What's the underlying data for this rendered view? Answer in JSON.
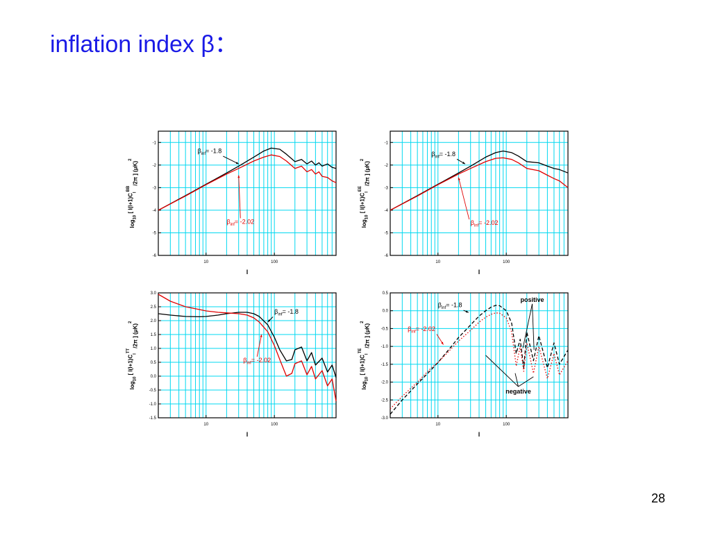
{
  "slide": {
    "title": "inflation index β：",
    "page_number": "28"
  },
  "colors": {
    "title": "#1a1ae6",
    "grid": "#00d8f0",
    "series_a": "#000000",
    "series_b": "#e00000"
  },
  "chart_data": [
    {
      "type": "line",
      "xscale": "log",
      "xlim": [
        2,
        800
      ],
      "ylim": [
        -6,
        -0.5
      ],
      "yticks": [
        "-1",
        "-2",
        "-3",
        "-4",
        "-5",
        "-6"
      ],
      "ytick_values": [
        -1,
        -2,
        -3,
        -4,
        -5,
        -6
      ],
      "xticks": [
        "10",
        "100"
      ],
      "xtick_values": [
        10,
        100
      ],
      "xlabel": "l",
      "ylabel_parts": [
        "log",
        "10",
        " [ l(l+1)C",
        "l",
        "BB",
        "/2π ] (μK)",
        "2"
      ],
      "series": [
        {
          "label": "β",
          "label_sub": "inf",
          "label_value": "= -1.8",
          "style": "solid",
          "x": [
            2,
            5,
            10,
            20,
            30,
            50,
            70,
            90,
            120,
            150,
            200,
            250,
            300,
            350,
            400,
            450,
            500,
            600,
            700,
            800
          ],
          "y": [
            -4.0,
            -3.35,
            -2.85,
            -2.35,
            -2.05,
            -1.65,
            -1.38,
            -1.25,
            -1.3,
            -1.52,
            -1.85,
            -1.75,
            -1.95,
            -1.82,
            -2.0,
            -1.9,
            -2.05,
            -1.95,
            -2.1,
            -2.15
          ]
        },
        {
          "label": "β",
          "label_sub": "inf",
          "label_value": "= -2.02",
          "style": "solid",
          "x": [
            2,
            5,
            10,
            20,
            30,
            50,
            70,
            90,
            120,
            150,
            200,
            250,
            300,
            350,
            400,
            450,
            500,
            600,
            700,
            800
          ],
          "y": [
            -4.0,
            -3.37,
            -2.87,
            -2.4,
            -2.15,
            -1.82,
            -1.65,
            -1.55,
            -1.62,
            -1.82,
            -2.15,
            -2.05,
            -2.3,
            -2.2,
            -2.4,
            -2.3,
            -2.5,
            -2.55,
            -2.7,
            -2.78
          ]
        }
      ],
      "annotations": [
        {
          "series": 0,
          "text_x": 7.5,
          "text_y": -1.47,
          "point_x": 30,
          "point_y": -1.95
        },
        {
          "series": 1,
          "text_x": 20,
          "text_y": -4.6,
          "point_x": 30,
          "point_y": -2.45
        }
      ]
    },
    {
      "type": "line",
      "xscale": "log",
      "xlim": [
        2,
        800
      ],
      "ylim": [
        -6,
        -0.5
      ],
      "yticks": [
        "-1",
        "-2",
        "-3",
        "-4",
        "-5",
        "-6"
      ],
      "ytick_values": [
        -1,
        -2,
        -3,
        -4,
        -5,
        -6
      ],
      "xticks": [
        "10",
        "100"
      ],
      "xtick_values": [
        10,
        100
      ],
      "xlabel": "l",
      "ylabel_parts": [
        "log",
        "10",
        " [ l(l+1)C",
        "l",
        "EE",
        "/2π ] (μK)",
        "2"
      ],
      "series": [
        {
          "label": "β",
          "label_sub": "inf",
          "label_value": "= -1.8",
          "style": "solid",
          "x": [
            2,
            5,
            10,
            20,
            30,
            50,
            70,
            90,
            120,
            150,
            200,
            300,
            400,
            500,
            600,
            800
          ],
          "y": [
            -4.0,
            -3.35,
            -2.85,
            -2.35,
            -2.05,
            -1.65,
            -1.45,
            -1.38,
            -1.45,
            -1.6,
            -1.85,
            -1.9,
            -2.05,
            -2.15,
            -2.2,
            -2.35
          ]
        },
        {
          "label": "β",
          "label_sub": "inf",
          "label_value": "= -2.02",
          "style": "solid",
          "x": [
            2,
            5,
            10,
            20,
            30,
            50,
            70,
            90,
            120,
            150,
            200,
            300,
            400,
            500,
            600,
            800
          ],
          "y": [
            -4.0,
            -3.37,
            -2.87,
            -2.4,
            -2.15,
            -1.85,
            -1.7,
            -1.68,
            -1.75,
            -1.9,
            -2.15,
            -2.25,
            -2.45,
            -2.6,
            -2.7,
            -3.0
          ]
        }
      ],
      "annotations": [
        {
          "series": 0,
          "text_x": 8,
          "text_y": -1.6,
          "point_x": 25,
          "point_y": -1.95
        },
        {
          "series": 1,
          "text_x": 30,
          "text_y": -4.65,
          "point_x": 20,
          "point_y": -2.55
        }
      ]
    },
    {
      "type": "line",
      "xscale": "log",
      "xlim": [
        2,
        800
      ],
      "ylim": [
        -1.5,
        3.0
      ],
      "yticks": [
        "3.0",
        "2.5",
        "2.0",
        "1.5",
        "1.0",
        "0.5",
        "0.0",
        "-0.5",
        "-1.0",
        "-1.5"
      ],
      "ytick_values": [
        3.0,
        2.5,
        2.0,
        1.5,
        1.0,
        0.5,
        0.0,
        -0.5,
        -1.0,
        -1.5
      ],
      "xticks": [
        "10",
        "100"
      ],
      "xtick_values": [
        10,
        100
      ],
      "xlabel": "l",
      "ylabel_parts": [
        "log",
        "10",
        " [ l(l+1)C",
        "l",
        "TT",
        "/2π ] (μK)",
        "2"
      ],
      "series": [
        {
          "label": "β",
          "label_sub": "inf",
          "label_value": "= -1.8",
          "style": "solid",
          "x": [
            2,
            3,
            5,
            8,
            10,
            15,
            20,
            30,
            40,
            50,
            60,
            80,
            100,
            120,
            150,
            180,
            200,
            250,
            300,
            350,
            400,
            500,
            600,
            700,
            800
          ],
          "y": [
            2.25,
            2.2,
            2.15,
            2.14,
            2.15,
            2.2,
            2.25,
            2.3,
            2.3,
            2.25,
            2.15,
            1.85,
            1.4,
            0.95,
            0.55,
            0.6,
            0.95,
            1.05,
            0.55,
            0.85,
            0.4,
            0.65,
            0.15,
            0.4,
            -0.05
          ]
        },
        {
          "label": "β",
          "label_sub": "inf",
          "label_value": "= -2.02",
          "style": "solid",
          "x": [
            2,
            3,
            5,
            8,
            10,
            15,
            20,
            30,
            40,
            50,
            60,
            80,
            100,
            120,
            150,
            180,
            200,
            250,
            300,
            350,
            400,
            500,
            600,
            700,
            800
          ],
          "y": [
            2.95,
            2.7,
            2.5,
            2.4,
            2.35,
            2.3,
            2.28,
            2.25,
            2.2,
            2.1,
            1.95,
            1.6,
            1.1,
            0.6,
            0.0,
            0.1,
            0.45,
            0.55,
            0.05,
            0.35,
            -0.1,
            0.2,
            -0.35,
            -0.1,
            -0.9
          ]
        }
      ],
      "annotations": [
        {
          "series": 0,
          "text_x": 100,
          "text_y": 2.25,
          "point_x": 80,
          "point_y": 1.95
        },
        {
          "series": 1,
          "text_x": 35,
          "text_y": 0.5,
          "point_x": 65,
          "point_y": 1.5
        }
      ]
    },
    {
      "type": "line",
      "xscale": "log",
      "xlim": [
        2,
        800
      ],
      "ylim": [
        -3.0,
        0.5
      ],
      "yticks": [
        "0.5",
        "0.0",
        "-0.5",
        "-1.0",
        "-1.5",
        "-2.0",
        "-2.5",
        "-3.0"
      ],
      "ytick_values": [
        0.5,
        0.0,
        -0.5,
        -1.0,
        -1.5,
        -2.0,
        -2.5,
        -3.0
      ],
      "xticks": [
        "10",
        "100"
      ],
      "xtick_values": [
        10,
        100
      ],
      "xlabel": "l",
      "ylabel_parts": [
        "log",
        "10",
        " [ l(l+1)C",
        "l",
        "TE",
        "/2π ] (μK)",
        "2"
      ],
      "series": [
        {
          "label": "β",
          "label_sub": "inf",
          "label_value": "= -1.8",
          "style": "dashed",
          "x": [
            2,
            3,
            5,
            8,
            10,
            15,
            20,
            30,
            40,
            50,
            60,
            70,
            80,
            100,
            120,
            140,
            160,
            180,
            200,
            250,
            300,
            400,
            500,
            600,
            800
          ],
          "y": [
            -2.9,
            -2.5,
            -2.05,
            -1.65,
            -1.45,
            -1.05,
            -0.75,
            -0.4,
            -0.15,
            0.0,
            0.1,
            0.15,
            0.14,
            0.0,
            -0.35,
            -1.2,
            -0.8,
            -1.6,
            -0.6,
            -1.4,
            -0.7,
            -1.6,
            -0.9,
            -1.5,
            -1.1
          ]
        },
        {
          "label": "β",
          "label_sub": "inf",
          "label_value": "= -2.02",
          "style": "dotted",
          "x": [
            2,
            3,
            5,
            8,
            10,
            15,
            20,
            30,
            40,
            50,
            60,
            70,
            80,
            100,
            120,
            140,
            160,
            180,
            200,
            250,
            300,
            400,
            500,
            600,
            800
          ],
          "y": [
            -2.75,
            -2.4,
            -2.0,
            -1.6,
            -1.45,
            -1.1,
            -0.85,
            -0.55,
            -0.32,
            -0.18,
            -0.1,
            -0.06,
            -0.07,
            -0.2,
            -0.6,
            -1.55,
            -1.0,
            -1.7,
            -0.9,
            -1.75,
            -1.0,
            -1.9,
            -1.2,
            -1.8,
            -1.4
          ]
        }
      ],
      "annotations": [
        {
          "series": 0,
          "text_x": 10,
          "text_y": 0.1,
          "point_x": 28,
          "point_y": -0.05
        },
        {
          "series": 1,
          "text_x": 3.6,
          "text_y": -0.57,
          "point_x": 12,
          "point_y": -0.95
        }
      ],
      "text_notes": [
        {
          "text": "positive",
          "x": 240,
          "y": 0.25,
          "arrows_to": [
            [
              175,
              -1.05
            ],
            [
              255,
              -1.1
            ]
          ]
        },
        {
          "text": "negative",
          "x": 150,
          "y": -2.32,
          "arrows_to": [
            [
              50,
              -1.25
            ],
            [
              135,
              -1.75
            ],
            [
              250,
              -1.85
            ]
          ]
        }
      ]
    }
  ]
}
